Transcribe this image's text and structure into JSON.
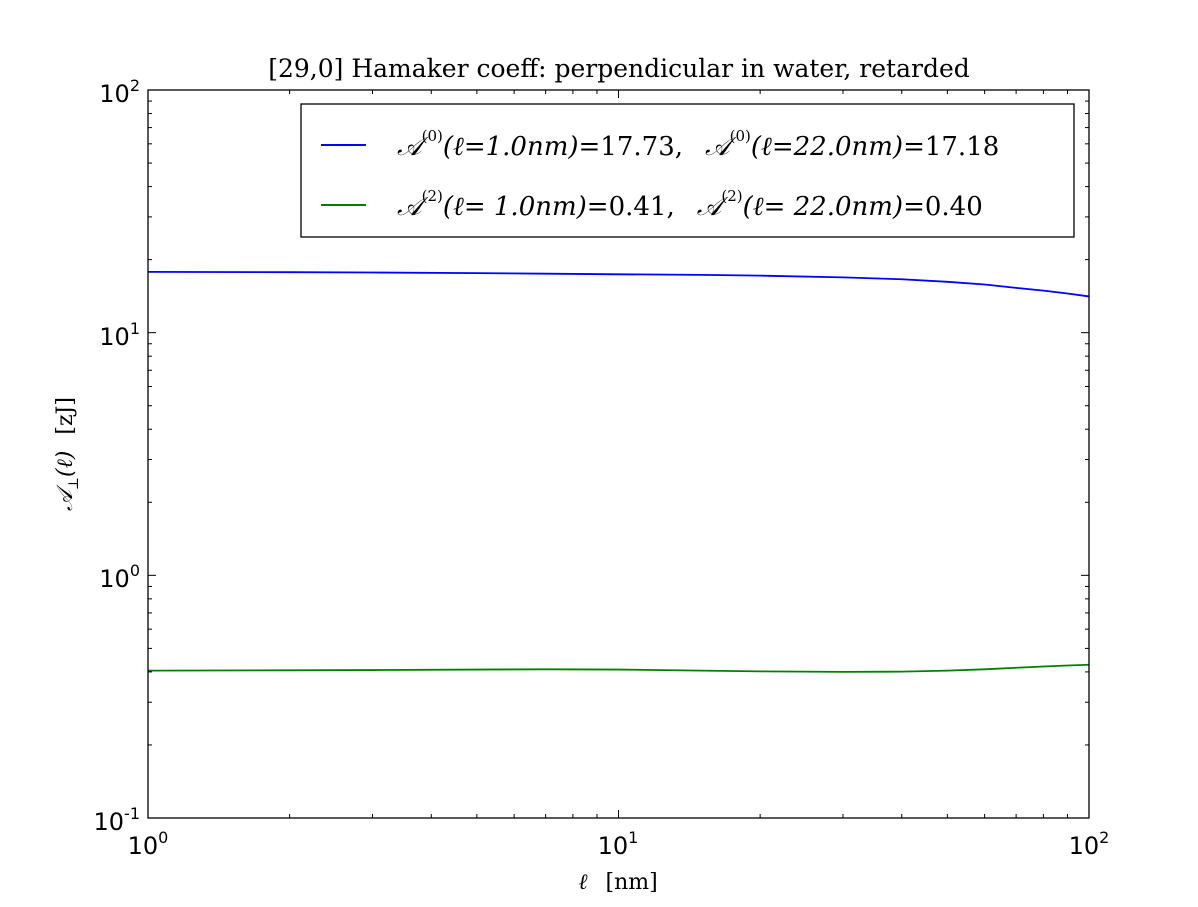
{
  "chart_data": {
    "type": "line",
    "title": "[29,0]  Hamaker coeff: perpendicular in water, retarded",
    "xlabel": {
      "symbol": "ℓ",
      "unit": "[nm]"
    },
    "ylabel": {
      "symbol": "𝒜",
      "sub": "⊥",
      "arg": "(ℓ)",
      "unit": "[zJ]"
    },
    "xscale": "log",
    "yscale": "log",
    "xlim": [
      1,
      100
    ],
    "ylim": [
      0.1,
      100
    ],
    "x_ticks": [
      {
        "base": "10",
        "exp": "0"
      },
      {
        "base": "10",
        "exp": "1"
      },
      {
        "base": "10",
        "exp": "2"
      }
    ],
    "y_ticks": [
      {
        "base": "10",
        "exp": "-1"
      },
      {
        "base": "10",
        "exp": "0"
      },
      {
        "base": "10",
        "exp": "1"
      },
      {
        "base": "10",
        "exp": "2"
      }
    ],
    "grid": false,
    "legend_position": "top-right",
    "series": [
      {
        "name": "A(0)",
        "color": "#0000ff",
        "legend": {
          "sym1": "𝒜",
          "sup1": "(0)",
          "arg1": "(ℓ=1.0nm)",
          "val1": "=17.73,",
          "sym2": "𝒜",
          "sup2": "(0)",
          "arg2": "(ℓ=22.0nm)",
          "val2": "=17.18"
        },
        "x": [
          1,
          2,
          3,
          5,
          7,
          10,
          15,
          20,
          30,
          40,
          50,
          60,
          70,
          80,
          90,
          100
        ],
        "y": [
          17.8,
          17.75,
          17.7,
          17.6,
          17.5,
          17.4,
          17.3,
          17.18,
          16.9,
          16.6,
          16.2,
          15.8,
          15.3,
          14.9,
          14.5,
          14.1
        ]
      },
      {
        "name": "A(2)",
        "color": "#008000",
        "legend": {
          "sym1": "𝒜",
          "sup1": "(2)",
          "arg1": "(ℓ= 1.0nm)",
          "val1": "=0.41,",
          "sym2": "𝒜",
          "sup2": "(2)",
          "arg2": "(ℓ= 22.0nm)",
          "val2": "=0.40"
        },
        "x": [
          1,
          2,
          3,
          5,
          7,
          10,
          15,
          20,
          30,
          40,
          50,
          60,
          70,
          80,
          90,
          100
        ],
        "y": [
          0.405,
          0.406,
          0.407,
          0.409,
          0.41,
          0.409,
          0.405,
          0.402,
          0.4,
          0.401,
          0.405,
          0.41,
          0.416,
          0.421,
          0.425,
          0.428
        ]
      }
    ]
  }
}
